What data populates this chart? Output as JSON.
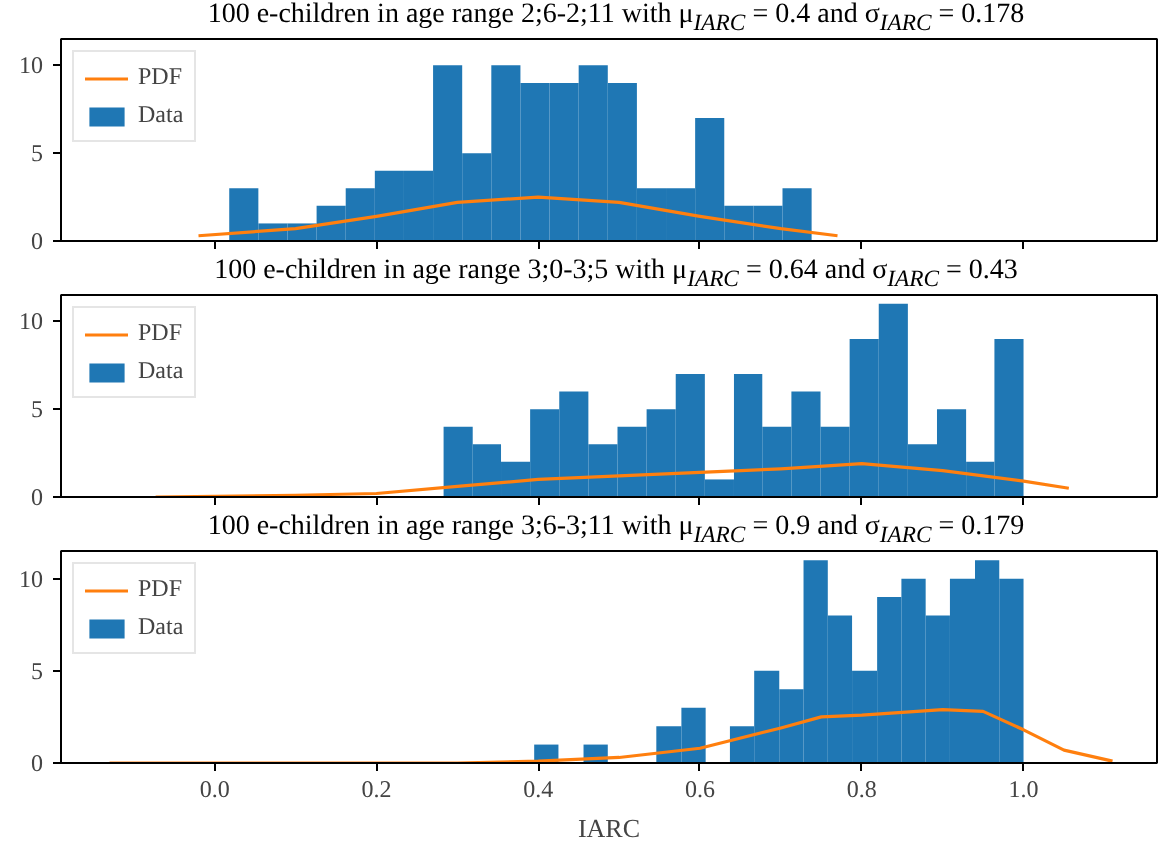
{
  "chart_data": [
    {
      "type": "histogram",
      "title": "100 e-children in age range 2;6-2;11 with μ$_{IARC}$ = 0.4 and σ$_{IARC}$ = 0.178",
      "xlim": [
        -0.19,
        1.165
      ],
      "ylim": [
        0,
        11.5
      ],
      "xticks": [
        {
          "value": 0,
          "label": null
        },
        {
          "value": 0.2,
          "label": null
        },
        {
          "value": 0.4,
          "label": null
        },
        {
          "value": 0.6,
          "label": null
        },
        {
          "value": 0.8,
          "label": null
        },
        {
          "value": 1.0,
          "label": null
        }
      ],
      "yticks": [
        0,
        5,
        10
      ],
      "tick_labels": "y",
      "legend": "top left",
      "grid": false,
      "series": [
        {
          "name": "PDF",
          "type": "line",
          "color": "#ff7f0e",
          "x": [
            -0.02,
            0.1,
            0.2,
            0.3,
            0.4,
            0.5,
            0.6,
            0.7,
            0.77
          ],
          "values": [
            0.3,
            0.7,
            1.4,
            2.2,
            2.5,
            2.2,
            1.4,
            0.7,
            0.3
          ]
        },
        {
          "name": "Data",
          "color": "#1f77b4",
          "bins": [
            0.018,
            0.054,
            0.09,
            0.126,
            0.162,
            0.198,
            0.234,
            0.27,
            0.306,
            0.342,
            0.378,
            0.414,
            0.45,
            0.486,
            0.522,
            0.558,
            0.594,
            0.63,
            0.666,
            0.702,
            0.738
          ],
          "values": [
            3,
            1,
            1,
            2,
            3,
            4,
            4,
            10,
            5,
            10,
            9,
            9,
            10,
            9,
            3,
            3,
            7,
            2,
            2,
            3
          ]
        }
      ]
    },
    {
      "type": "histogram",
      "title": "100 e-children in age range 3;0-3;5 with μ$_{IARC}$ = 0.64 and σ$_{IARC}$ = 0.43",
      "xlim": [
        -0.19,
        1.165
      ],
      "ylim": [
        0,
        11.5
      ],
      "xticks": [
        {
          "value": 0,
          "label": null
        },
        {
          "value": 0.2,
          "label": null
        },
        {
          "value": 0.4,
          "label": null
        },
        {
          "value": 0.6,
          "label": null
        },
        {
          "value": 0.8,
          "label": null
        },
        {
          "value": 1.0,
          "label": null
        }
      ],
      "yticks": [
        0,
        5,
        10
      ],
      "tick_labels": "y",
      "legend": "top left",
      "grid": false,
      "series": [
        {
          "name": "PDF",
          "type": "line",
          "color": "#ff7f0e",
          "x": [
            -0.073,
            0.1,
            0.2,
            0.3,
            0.4,
            0.5,
            0.6,
            0.7,
            0.8,
            0.9,
            1.0,
            1.056
          ],
          "values": [
            0,
            0.1,
            0.2,
            0.6,
            1.0,
            1.2,
            1.4,
            1.6,
            1.9,
            1.5,
            0.9,
            0.5
          ]
        },
        {
          "name": "Data",
          "color": "#1f77b4",
          "bins": [
            0.283,
            0.319,
            0.354,
            0.39,
            0.426,
            0.462,
            0.498,
            0.534,
            0.57,
            0.606,
            0.642,
            0.677,
            0.713,
            0.749,
            0.785,
            0.821,
            0.857,
            0.893,
            0.929,
            0.964,
            1.0
          ],
          "values": [
            4,
            3,
            2,
            5,
            6,
            3,
            4,
            5,
            7,
            1,
            7,
            4,
            6,
            4,
            9,
            11,
            3,
            5,
            2,
            9
          ]
        }
      ]
    },
    {
      "type": "histogram",
      "title": "100 e-children in age range 3;6-3;11 with μ$_{IARC}$ = 0.9 and σ$_{IARC}$ = 0.179",
      "xlabel": "IARC",
      "xlim": [
        -0.19,
        1.165
      ],
      "ylim": [
        0,
        11.5
      ],
      "xticks": [
        {
          "value": 0,
          "label": "0.0"
        },
        {
          "value": 0.2,
          "label": "0.2"
        },
        {
          "value": 0.4,
          "label": "0.4"
        },
        {
          "value": 0.6,
          "label": "0.6"
        },
        {
          "value": 0.8,
          "label": "0.8"
        },
        {
          "value": 1.0,
          "label": "1.0"
        }
      ],
      "yticks": [
        0,
        5,
        10
      ],
      "legend": "top left",
      "grid": false,
      "series": [
        {
          "name": "PDF",
          "type": "line",
          "color": "#ff7f0e",
          "x": [
            -0.13,
            0.0,
            0.2,
            0.3,
            0.4,
            0.5,
            0.6,
            0.7,
            0.75,
            0.8,
            0.9,
            0.95,
            1.0,
            1.05,
            1.11
          ],
          "values": [
            0,
            0,
            0,
            0.0,
            0.1,
            0.3,
            0.8,
            1.9,
            2.5,
            2.6,
            2.9,
            2.8,
            1.8,
            0.7,
            0.1
          ]
        },
        {
          "name": "Data",
          "color": "#1f77b4",
          "bins": [
            0.395,
            0.425,
            0.456,
            0.486,
            0.546,
            0.577,
            0.607,
            0.637,
            0.667,
            0.698,
            0.728,
            0.758,
            0.788,
            0.819,
            0.849,
            0.879,
            0.909,
            0.94,
            0.97,
            1.0
          ],
          "values": [
            1,
            0,
            1,
            0,
            2,
            3,
            0,
            2,
            5,
            4,
            11,
            8,
            5,
            9,
            10,
            8,
            10,
            11,
            10
          ]
        }
      ]
    }
  ]
}
